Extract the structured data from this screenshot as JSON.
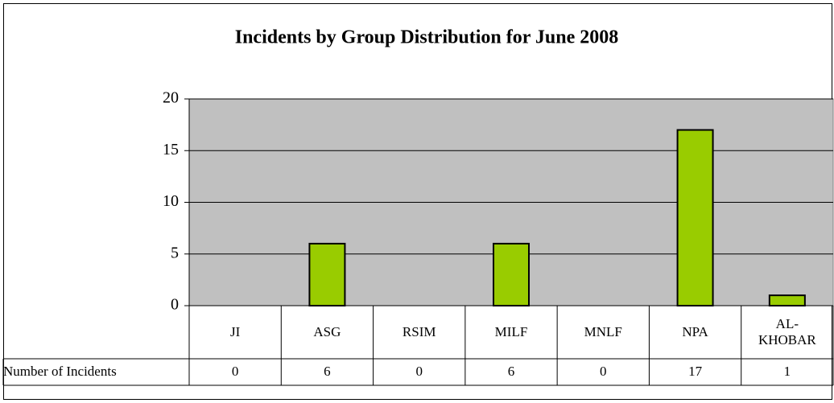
{
  "chart_data": {
    "type": "bar",
    "title": "Incidents by Group Distribution for June 2008",
    "categories": [
      "JI",
      "ASG",
      "RSIM",
      "MILF",
      "MNLF",
      "NPA",
      "AL-KHOBAR"
    ],
    "series": [
      {
        "name": "Number of Incidents",
        "color": "#99cc00",
        "values": [
          0,
          6,
          0,
          6,
          0,
          17,
          1
        ]
      }
    ],
    "ylim": [
      0,
      20
    ],
    "yticks": [
      0,
      5,
      10,
      15,
      20
    ],
    "grid": true
  }
}
